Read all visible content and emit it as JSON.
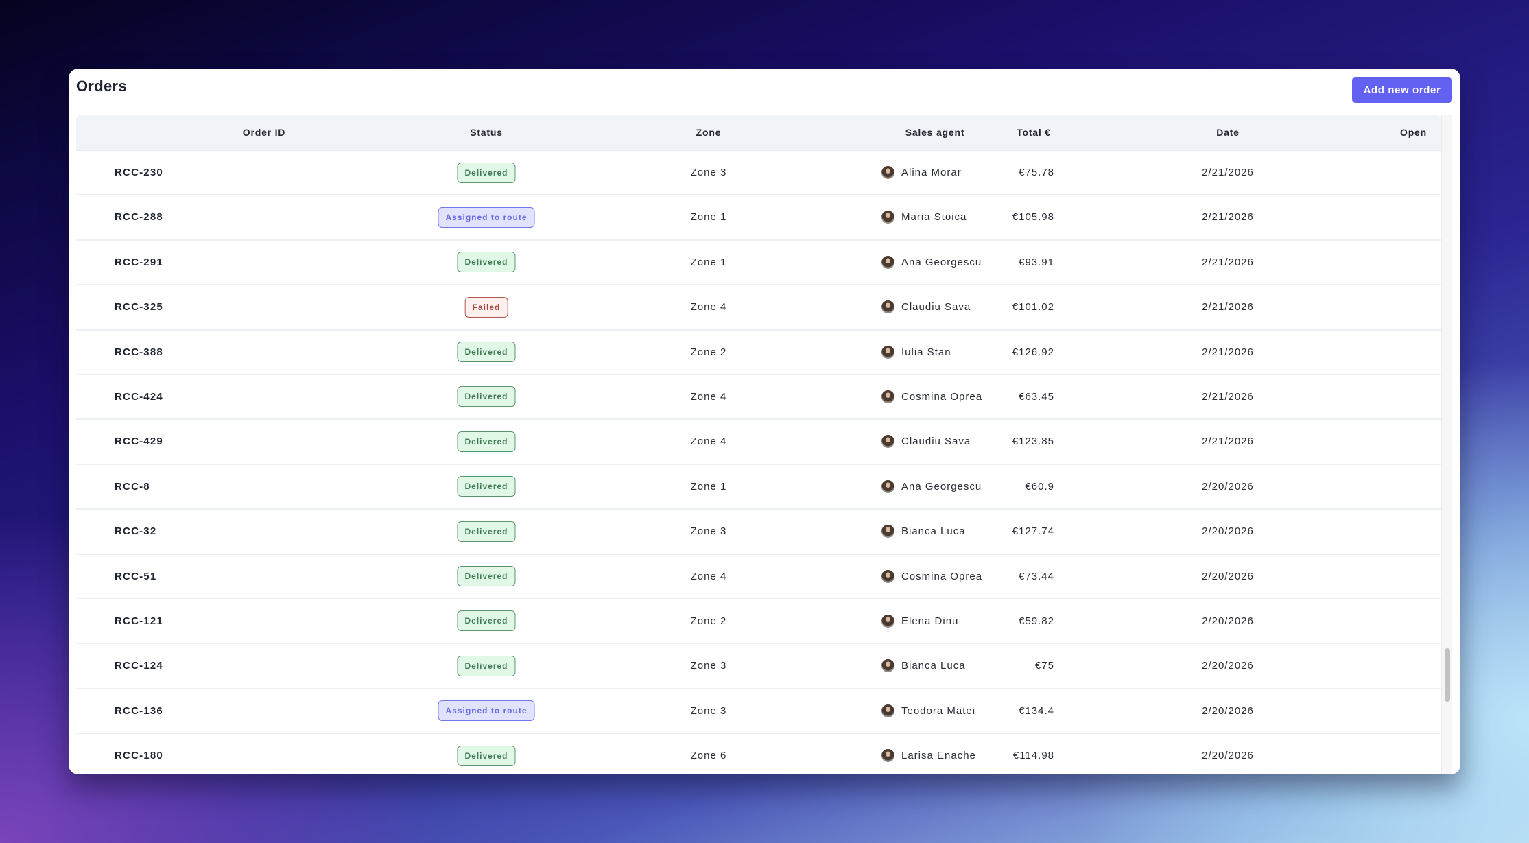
{
  "header": {
    "title": "Orders",
    "add_button_label": "Add new order"
  },
  "colors": {
    "accent": "#6361f1",
    "delivered_bg": "#e2f8e7",
    "assigned_bg": "#e1e2fd",
    "failed_bg": "#fdf0ef"
  },
  "table": {
    "columns": [
      "Order ID",
      "Status",
      "Zone",
      "Sales agent",
      "Total €",
      "Date",
      "Open"
    ],
    "rows": [
      {
        "order_id": "RCC-230",
        "status": "Delivered",
        "status_kind": "delivered",
        "zone": "Zone 3",
        "agent": "Alina Morar",
        "total": "€75.78",
        "date": "2/21/2026",
        "open": ""
      },
      {
        "order_id": "RCC-288",
        "status": "Assigned to route",
        "status_kind": "assigned",
        "zone": "Zone 1",
        "agent": "Maria Stoica",
        "total": "€105.98",
        "date": "2/21/2026",
        "open": ""
      },
      {
        "order_id": "RCC-291",
        "status": "Delivered",
        "status_kind": "delivered",
        "zone": "Zone 1",
        "agent": "Ana Georgescu",
        "total": "€93.91",
        "date": "2/21/2026",
        "open": ""
      },
      {
        "order_id": "RCC-325",
        "status": "Failed",
        "status_kind": "failed",
        "zone": "Zone 4",
        "agent": "Claudiu Sava",
        "total": "€101.02",
        "date": "2/21/2026",
        "open": ""
      },
      {
        "order_id": "RCC-388",
        "status": "Delivered",
        "status_kind": "delivered",
        "zone": "Zone 2",
        "agent": "Iulia Stan",
        "total": "€126.92",
        "date": "2/21/2026",
        "open": ""
      },
      {
        "order_id": "RCC-424",
        "status": "Delivered",
        "status_kind": "delivered",
        "zone": "Zone 4",
        "agent": "Cosmina Oprea",
        "total": "€63.45",
        "date": "2/21/2026",
        "open": ""
      },
      {
        "order_id": "RCC-429",
        "status": "Delivered",
        "status_kind": "delivered",
        "zone": "Zone 4",
        "agent": "Claudiu Sava",
        "total": "€123.85",
        "date": "2/21/2026",
        "open": ""
      },
      {
        "order_id": "RCC-8",
        "status": "Delivered",
        "status_kind": "delivered",
        "zone": "Zone 1",
        "agent": "Ana Georgescu",
        "total": "€60.9",
        "date": "2/20/2026",
        "open": ""
      },
      {
        "order_id": "RCC-32",
        "status": "Delivered",
        "status_kind": "delivered",
        "zone": "Zone 3",
        "agent": "Bianca Luca",
        "total": "€127.74",
        "date": "2/20/2026",
        "open": ""
      },
      {
        "order_id": "RCC-51",
        "status": "Delivered",
        "status_kind": "delivered",
        "zone": "Zone 4",
        "agent": "Cosmina Oprea",
        "total": "€73.44",
        "date": "2/20/2026",
        "open": ""
      },
      {
        "order_id": "RCC-121",
        "status": "Delivered",
        "status_kind": "delivered",
        "zone": "Zone 2",
        "agent": "Elena Dinu",
        "total": "€59.82",
        "date": "2/20/2026",
        "open": ""
      },
      {
        "order_id": "RCC-124",
        "status": "Delivered",
        "status_kind": "delivered",
        "zone": "Zone 3",
        "agent": "Bianca Luca",
        "total": "€75",
        "date": "2/20/2026",
        "open": ""
      },
      {
        "order_id": "RCC-136",
        "status": "Assigned to route",
        "status_kind": "assigned",
        "zone": "Zone 3",
        "agent": "Teodora Matei",
        "total": "€134.4",
        "date": "2/20/2026",
        "open": ""
      },
      {
        "order_id": "RCC-180",
        "status": "Delivered",
        "status_kind": "delivered",
        "zone": "Zone 6",
        "agent": "Larisa Enache",
        "total": "€114.98",
        "date": "2/20/2026",
        "open": ""
      }
    ]
  }
}
